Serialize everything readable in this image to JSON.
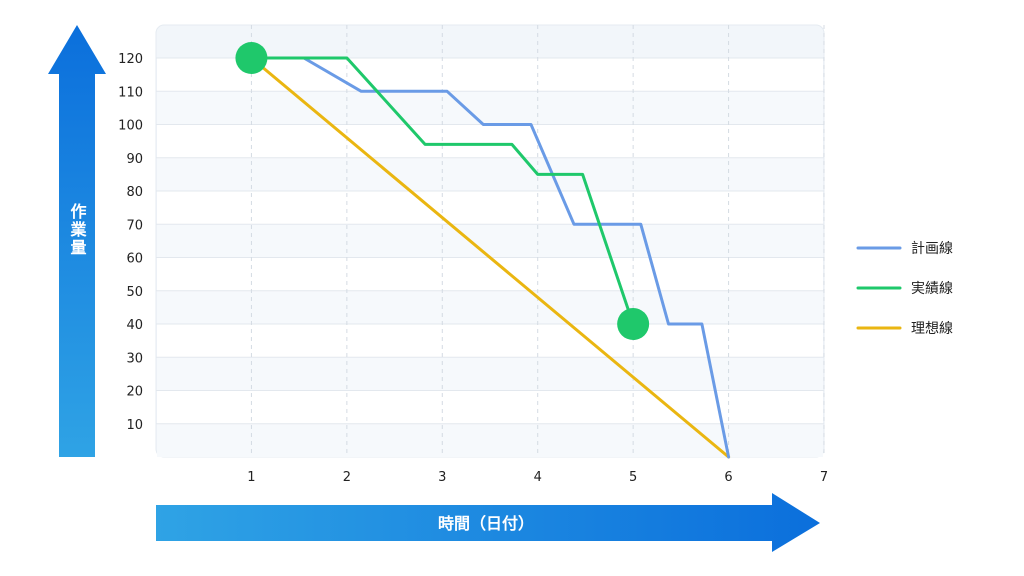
{
  "chart_data": {
    "type": "line",
    "xlabel": "時間（日付）",
    "ylabel": "作業量",
    "xlim": [
      0,
      7
    ],
    "ylim": [
      0,
      120
    ],
    "x_ticks": [
      1,
      2,
      3,
      4,
      5,
      6,
      7
    ],
    "y_ticks": [
      10,
      20,
      30,
      40,
      50,
      60,
      70,
      80,
      90,
      100,
      110,
      120
    ],
    "grid": true,
    "legend_position": "right",
    "series": [
      {
        "name": "計画線",
        "color": "#6a9be6",
        "points": [
          [
            1,
            120
          ],
          [
            1.55,
            120
          ],
          [
            2.15,
            110
          ],
          [
            3.05,
            110
          ],
          [
            3.43,
            100
          ],
          [
            3.93,
            100
          ],
          [
            4.38,
            70
          ],
          [
            5.08,
            70
          ],
          [
            5.37,
            40
          ],
          [
            5.72,
            40
          ],
          [
            6,
            0
          ]
        ]
      },
      {
        "name": "実績線",
        "color": "#1fc86b",
        "points": [
          [
            1,
            120
          ],
          [
            2,
            120
          ],
          [
            2.82,
            94
          ],
          [
            3.73,
            94
          ],
          [
            4,
            85
          ],
          [
            4.47,
            85
          ],
          [
            5,
            40
          ]
        ]
      },
      {
        "name": "理想線",
        "color": "#eab611",
        "points": [
          [
            1,
            120
          ],
          [
            6,
            0
          ]
        ]
      }
    ],
    "markers": [
      {
        "x": 1,
        "y": 120,
        "color": "#1fc86b"
      },
      {
        "x": 5,
        "y": 40,
        "color": "#1fc86b"
      }
    ]
  }
}
